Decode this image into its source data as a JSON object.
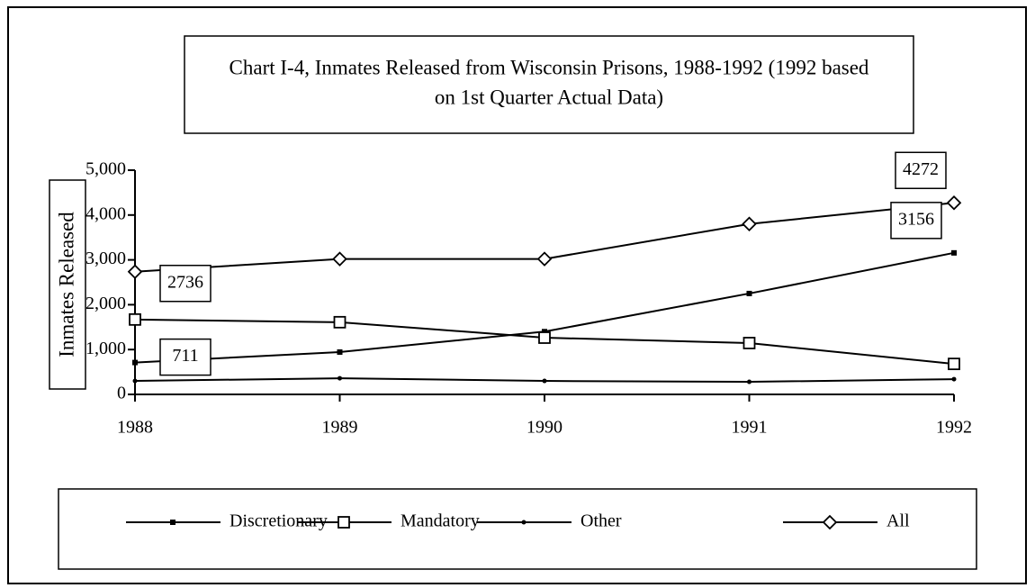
{
  "chart_data": {
    "type": "line",
    "title": [
      "Chart I-4, Inmates Released from Wisconsin Prisons, 1988-1992 (1992 based",
      "on 1st Quarter Actual Data)"
    ],
    "y_label": "Inmates Released",
    "categories": [
      "1988",
      "1989",
      "1990",
      "1991",
      "1992"
    ],
    "series": [
      {
        "name": "Discretionary",
        "color": "#000000",
        "marker": "small-square",
        "values": [
          711,
          944,
          1400,
          2250,
          3156
        ]
      },
      {
        "name": "Mandatory",
        "color": "#000000",
        "marker": "open-square",
        "values": [
          1670,
          1610,
          1265,
          1145,
          680
        ]
      },
      {
        "name": "Other",
        "color": "#000000",
        "marker": "dot",
        "values": [
          300,
          360,
          300,
          280,
          340
        ]
      },
      {
        "name": "All",
        "color": "#000000",
        "marker": "open-diamond",
        "values": [
          2736,
          3020,
          3020,
          3800,
          4272
        ]
      }
    ],
    "ylim": [
      0,
      5000
    ],
    "yticks": [
      0,
      {
        "value": 1000,
        "label": "1,000"
      },
      {
        "value": 2000,
        "label": "2,000"
      },
      {
        "value": 3000,
        "label": "3,000"
      },
      {
        "value": 4000,
        "label": "4,000"
      },
      {
        "value": 5000,
        "label": "5,000"
      }
    ],
    "grid": false
  }
}
